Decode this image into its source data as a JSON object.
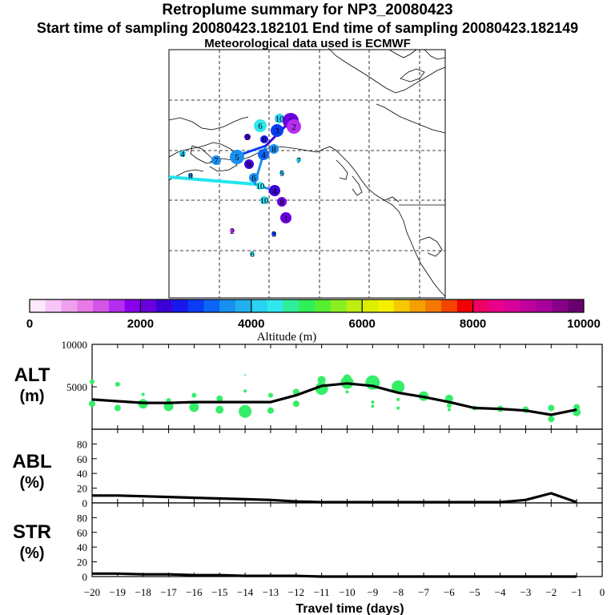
{
  "header": {
    "title": "Retroplume summary for NP3_20080423",
    "sampling": "Start time of sampling 20080423.182101     End time of sampling 20080423.182149",
    "met": "Meteorological data used is ECMWF"
  },
  "colors": {
    "line": "#000000",
    "scatter": "#33ee66",
    "plume_path": "#22e5ee",
    "colorbar": [
      "#fde8fd",
      "#f7c6f7",
      "#efa0ef",
      "#e77ae7",
      "#d455e8",
      "#b52ef0",
      "#8a00ee",
      "#6a00dd",
      "#3c00d6",
      "#1818ee",
      "#0a3cf5",
      "#0b66f5",
      "#1890f0",
      "#20b0ee",
      "#2ad2f0",
      "#30e8ee",
      "#30ee9a",
      "#30ee55",
      "#55ee30",
      "#88ee22",
      "#bbee11",
      "#ddee00",
      "#f5f000",
      "#f5c800",
      "#f5a000",
      "#f57800",
      "#f54400",
      "#f00000",
      "#ee0066",
      "#e8008a",
      "#d8009a",
      "#c0009c",
      "#a8009a",
      "#880088",
      "#6a0070"
    ]
  },
  "map": {
    "markers": [
      {
        "label": "10",
        "color": "#2ad2f0"
      },
      {
        "label": "1",
        "color": "#6a00dd"
      },
      {
        "label": "2",
        "color": "#b52ef0"
      },
      {
        "label": "3",
        "color": "#0a3cf5"
      },
      {
        "label": "6",
        "color": "#30e8ee"
      },
      {
        "label": "0",
        "color": "#1818ee"
      },
      {
        "label": "8",
        "color": "#1890f0"
      },
      {
        "label": "4",
        "color": "#0b66f5"
      },
      {
        "label": "5",
        "color": "#1890f0"
      },
      {
        "label": "9",
        "color": "#3c00d6"
      },
      {
        "label": "7",
        "color": "#1890f0"
      },
      {
        "label": "4",
        "color": "#2ad2f0"
      },
      {
        "label": "9",
        "color": "#3c00d6"
      },
      {
        "label": "5",
        "color": "#20b0ee"
      },
      {
        "label": "7",
        "color": "#2ad2f0"
      },
      {
        "label": "8",
        "color": "#1890f0"
      },
      {
        "label": "6",
        "color": "#1890f0"
      },
      {
        "label": "10",
        "color": "#30e8ee"
      },
      {
        "label": "4",
        "color": "#3c00d6"
      },
      {
        "label": "8",
        "color": "#6a00dd"
      }
    ]
  },
  "colorbar": {
    "tick_labels": [
      "0",
      "2000",
      "4000",
      "6000",
      "8000",
      "10000"
    ],
    "label": "Altitude (m)"
  },
  "chart_data": [
    {
      "type": "line",
      "panel": "ALT",
      "ylabel": "ALT\n(m)",
      "ylim": [
        0,
        10000
      ],
      "ytick_labels": [
        "10000",
        "5000"
      ],
      "xlim": [
        -20,
        0
      ],
      "x": [
        -20,
        -19,
        -18,
        -17,
        -16,
        -15,
        -14,
        -13,
        -12,
        -11,
        -10,
        -9,
        -8,
        -7,
        -6,
        -5,
        -4,
        -3,
        -2,
        -1
      ],
      "series": [
        {
          "name": "median altitude",
          "values": [
            3500,
            3300,
            3100,
            3100,
            3200,
            3200,
            3200,
            3200,
            4000,
            5100,
            5400,
            5100,
            4300,
            3800,
            3200,
            2500,
            2400,
            2200,
            1700,
            2300
          ]
        }
      ],
      "scatter": [
        {
          "x": -20,
          "y": 5600,
          "s": 3
        },
        {
          "x": -20,
          "y": 3000,
          "s": 4
        },
        {
          "x": -19,
          "y": 5300,
          "s": 3
        },
        {
          "x": -19,
          "y": 2500,
          "s": 4
        },
        {
          "x": -18,
          "y": 4100,
          "s": 2
        },
        {
          "x": -18,
          "y": 3000,
          "s": 6
        },
        {
          "x": -17,
          "y": 2700,
          "s": 6
        },
        {
          "x": -17,
          "y": 3400,
          "s": 3
        },
        {
          "x": -16,
          "y": 4000,
          "s": 3
        },
        {
          "x": -16,
          "y": 2600,
          "s": 6
        },
        {
          "x": -15,
          "y": 3600,
          "s": 4
        },
        {
          "x": -15,
          "y": 2300,
          "s": 5
        },
        {
          "x": -14,
          "y": 6400,
          "s": 1
        },
        {
          "x": -14,
          "y": 4500,
          "s": 2
        },
        {
          "x": -14,
          "y": 2100,
          "s": 8
        },
        {
          "x": -13,
          "y": 4000,
          "s": 3
        },
        {
          "x": -13,
          "y": 2200,
          "s": 4
        },
        {
          "x": -12,
          "y": 4400,
          "s": 4
        },
        {
          "x": -12,
          "y": 3000,
          "s": 4
        },
        {
          "x": -11,
          "y": 5800,
          "s": 5
        },
        {
          "x": -11,
          "y": 4800,
          "s": 8
        },
        {
          "x": -10,
          "y": 6000,
          "s": 5
        },
        {
          "x": -10,
          "y": 5500,
          "s": 8
        },
        {
          "x": -10,
          "y": 4400,
          "s": 2
        },
        {
          "x": -9,
          "y": 5500,
          "s": 9
        },
        {
          "x": -9,
          "y": 3200,
          "s": 2
        },
        {
          "x": -9,
          "y": 2700,
          "s": 2
        },
        {
          "x": -8,
          "y": 5000,
          "s": 8
        },
        {
          "x": -8,
          "y": 3500,
          "s": 2
        },
        {
          "x": -8,
          "y": 2500,
          "s": 2
        },
        {
          "x": -7,
          "y": 3900,
          "s": 6
        },
        {
          "x": -6,
          "y": 3600,
          "s": 5
        },
        {
          "x": -6,
          "y": 2800,
          "s": 3
        },
        {
          "x": -6,
          "y": 2300,
          "s": 2
        },
        {
          "x": -5,
          "y": 2500,
          "s": 3
        },
        {
          "x": -4,
          "y": 2400,
          "s": 4
        },
        {
          "x": -3,
          "y": 2300,
          "s": 4
        },
        {
          "x": -2,
          "y": 2500,
          "s": 4
        },
        {
          "x": -2,
          "y": 1200,
          "s": 4
        },
        {
          "x": -1,
          "y": 2600,
          "s": 4
        },
        {
          "x": -1,
          "y": 2000,
          "s": 5
        }
      ]
    },
    {
      "type": "line",
      "panel": "ABL",
      "ylabel": "ABL\n(%)",
      "ylim": [
        0,
        100
      ],
      "ytick_labels": [
        "80",
        "60",
        "40",
        "20",
        "0"
      ],
      "xlim": [
        -20,
        0
      ],
      "x": [
        -20,
        -19,
        -18,
        -17,
        -16,
        -15,
        -14,
        -13,
        -12,
        -11,
        -10,
        -9,
        -8,
        -7,
        -6,
        -5,
        -4,
        -3,
        -2,
        -1
      ],
      "series": [
        {
          "name": "ABL fraction",
          "values": [
            10,
            10,
            9,
            8,
            7,
            6,
            5,
            4,
            2,
            1,
            1,
            1,
            1,
            1,
            1,
            1,
            1,
            4,
            13,
            1
          ]
        }
      ]
    },
    {
      "type": "line",
      "panel": "STR",
      "ylabel": "STR\n(%)",
      "ylim": [
        0,
        100
      ],
      "ytick_labels": [
        "80",
        "60",
        "40",
        "20",
        "0"
      ],
      "xlim": [
        -20,
        0
      ],
      "x": [
        -20,
        -19,
        -18,
        -17,
        -16,
        -15,
        -14,
        -13,
        -12,
        -11,
        -10,
        -9,
        -8,
        -7,
        -6,
        -5,
        -4,
        -3,
        -2,
        -1
      ],
      "series": [
        {
          "name": "STR fraction",
          "values": [
            4,
            4,
            3,
            3,
            2,
            2,
            1,
            1,
            1,
            0,
            0,
            0,
            0,
            0,
            0,
            0,
            0,
            0,
            0,
            0
          ]
        }
      ],
      "xtick_labels": [
        "−20",
        "−19",
        "−18",
        "−17",
        "−16",
        "−15",
        "−14",
        "−13",
        "−12",
        "−11",
        "−10",
        "−9",
        "−8",
        "−7",
        "−6",
        "−5",
        "−4",
        "−3",
        "−2",
        "−1",
        "0"
      ],
      "xlabel": "Travel time (days)"
    }
  ]
}
